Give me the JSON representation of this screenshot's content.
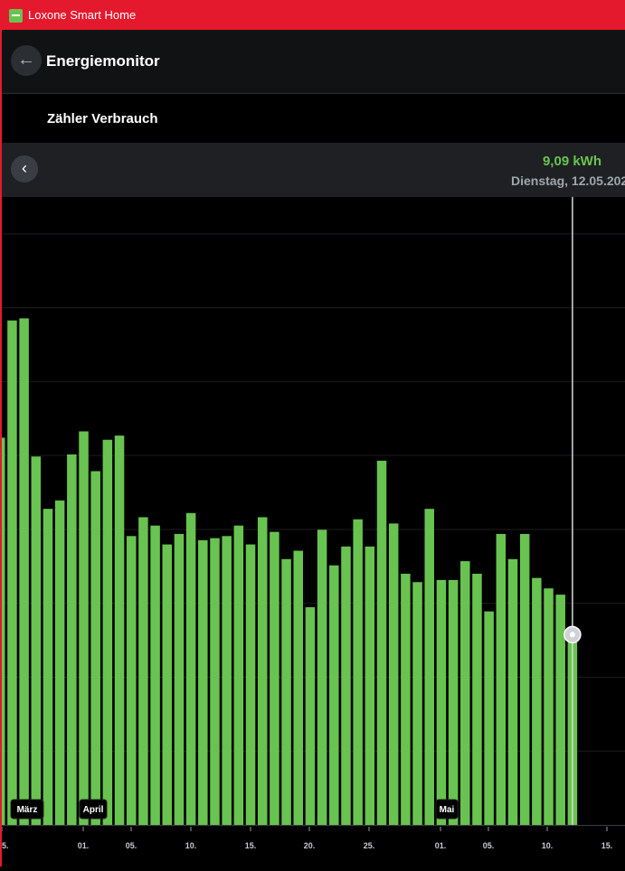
{
  "window": {
    "title": "Loxone Smart Home"
  },
  "header": {
    "back_icon": "arrow-left-icon",
    "title": "Energiemonitor"
  },
  "subheader": {
    "title": "Zähler Verbrauch"
  },
  "nav": {
    "prev_icon": "chevron-left-icon",
    "value": "9,09 kWh",
    "date": "Dienstag, 12.05.202"
  },
  "colors": {
    "accent": "#69c350",
    "titlebar": "#e5192e"
  },
  "chart_data": {
    "type": "bar",
    "unit": "kWh",
    "grid": true,
    "selected_index": 48,
    "month_markers": [
      "März",
      "April",
      "Mai"
    ],
    "x_tick_labels": [
      "5.",
      "01.",
      "05.",
      "10.",
      "15.",
      "20.",
      "25.",
      "01.",
      "05.",
      "10.",
      "15."
    ],
    "values": [
      18.5,
      24.1,
      24.2,
      17.6,
      15.1,
      15.5,
      17.7,
      18.8,
      16.9,
      18.4,
      18.6,
      13.8,
      14.7,
      14.3,
      13.4,
      13.9,
      14.9,
      13.6,
      13.7,
      13.8,
      14.3,
      13.4,
      14.7,
      14.0,
      12.7,
      13.1,
      10.4,
      14.1,
      12.4,
      13.3,
      14.6,
      13.3,
      17.4,
      14.4,
      12.0,
      11.6,
      15.1,
      11.7,
      11.7,
      12.6,
      12.0,
      10.2,
      13.9,
      12.7,
      13.9,
      11.8,
      11.3,
      11.0,
      9.09
    ]
  }
}
